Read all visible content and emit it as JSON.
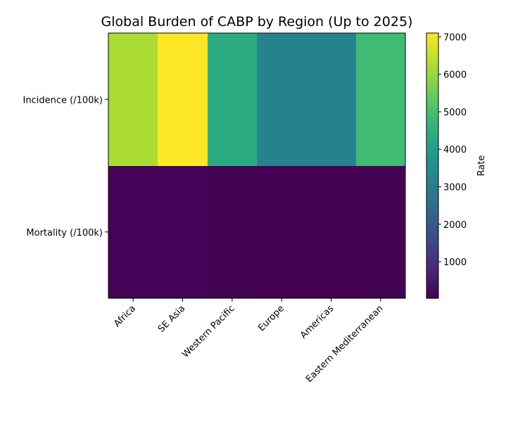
{
  "chart_data": {
    "type": "heatmap",
    "title": "Global Burden of CABP by Region (Up to 2025)",
    "columns": [
      "Africa",
      "SE Asia",
      "Western Pacific",
      "Europe",
      "Americas",
      "Eastern Mediterranean"
    ],
    "rows": [
      "Incidence (/100k)",
      "Mortality (/100k)"
    ],
    "values": [
      [
        6200,
        7100,
        4400,
        3200,
        3200,
        4900
      ],
      [
        70,
        60,
        40,
        25,
        30,
        45
      ]
    ],
    "colorbar": {
      "label": "Rate",
      "ticks": [
        1000,
        2000,
        3000,
        4000,
        5000,
        6000,
        7000
      ],
      "vmin": 25,
      "vmax": 7100
    }
  }
}
